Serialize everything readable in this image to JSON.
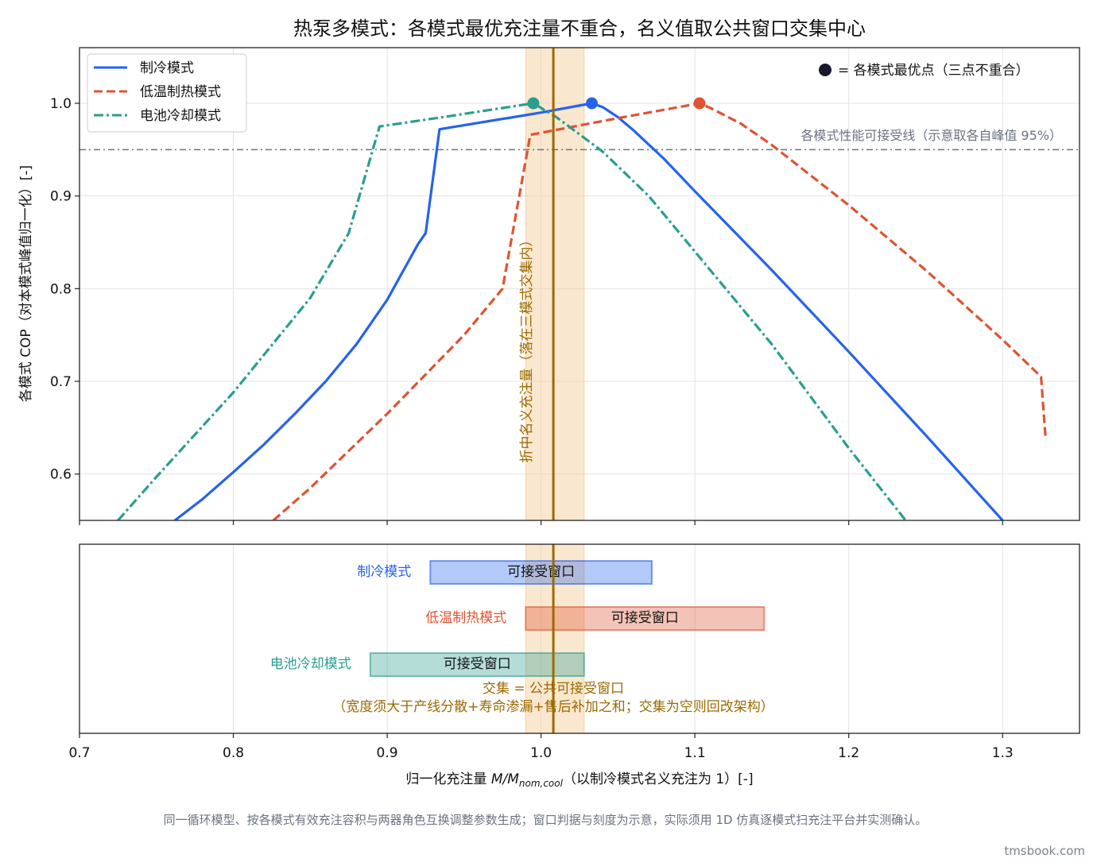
{
  "figure": {
    "title": "热泵多模式：各模式最优充注量不重合，名义值取公共窗口交集中心",
    "footnote": "同一循环模型、按各模式有效充注容积与两器角色互换调整参数生成；窗口判据与刻度为示意，实际须用 1D 仿真逐模式扫充注平台并实测确认。",
    "watermark": "tmsbook.com"
  },
  "colors": {
    "cooling": "#2563eb",
    "heating": "#e05331",
    "battery": "#2a9d8f",
    "nominal": "#9a6a00",
    "band_fill": "#f5c994",
    "threshold": "#6b7280",
    "optimum_marker": "#1a1a2e"
  },
  "chart_data": [
    {
      "type": "line",
      "name": "top-panel",
      "ylabel": "各模式 COP（对本模式峰值归一化）[-]",
      "xlim": [
        0.7,
        1.35
      ],
      "ylim": [
        0.55,
        1.06
      ],
      "yticks": [
        0.6,
        0.7,
        0.8,
        0.9,
        1.0
      ],
      "ytick_labels": [
        "0.6",
        "0.7",
        "0.8",
        "0.9",
        "1.0"
      ],
      "grid": true,
      "legend_position": "top-left",
      "series": [
        {
          "name": "制冷模式",
          "key": "cooling",
          "style": "solid",
          "points": [
            [
              0.762,
              0.55
            ],
            [
              0.78,
              0.573
            ],
            [
              0.8,
              0.602
            ],
            [
              0.82,
              0.632
            ],
            [
              0.84,
              0.665
            ],
            [
              0.86,
              0.7
            ],
            [
              0.88,
              0.74
            ],
            [
              0.9,
              0.788
            ],
            [
              0.92,
              0.848
            ],
            [
              0.925,
              0.86
            ],
            [
              0.934,
              0.972
            ],
            [
              1.0,
              0.99
            ],
            [
              1.033,
              1.0
            ],
            [
              1.04,
              0.996
            ],
            [
              1.05,
              0.985
            ],
            [
              1.06,
              0.971
            ],
            [
              1.08,
              0.94
            ],
            [
              1.1,
              0.905
            ],
            [
              1.15,
              0.82
            ],
            [
              1.2,
              0.732
            ],
            [
              1.25,
              0.642
            ],
            [
              1.3,
              0.55
            ]
          ],
          "optimum": [
            1.033,
            1.0
          ]
        },
        {
          "name": "低温制热模式",
          "key": "heating",
          "style": "dashed",
          "points": [
            [
              0.826,
              0.55
            ],
            [
              0.85,
              0.585
            ],
            [
              0.9,
              0.665
            ],
            [
              0.95,
              0.75
            ],
            [
              0.975,
              0.8
            ],
            [
              0.993,
              0.966
            ],
            [
              1.05,
              0.984
            ],
            [
              1.103,
              1.0
            ],
            [
              1.11,
              0.995
            ],
            [
              1.13,
              0.978
            ],
            [
              1.15,
              0.955
            ],
            [
              1.2,
              0.89
            ],
            [
              1.25,
              0.82
            ],
            [
              1.3,
              0.745
            ],
            [
              1.325,
              0.705
            ],
            [
              1.328,
              0.638
            ]
          ],
          "optimum": [
            1.103,
            1.0
          ]
        },
        {
          "name": "电池冷却模式",
          "key": "battery",
          "style": "dashdot",
          "points": [
            [
              0.725,
              0.55
            ],
            [
              0.75,
              0.597
            ],
            [
              0.8,
              0.688
            ],
            [
              0.85,
              0.79
            ],
            [
              0.875,
              0.86
            ],
            [
              0.895,
              0.975
            ],
            [
              0.94,
              0.986
            ],
            [
              0.995,
              1.0
            ],
            [
              1.01,
              0.985
            ],
            [
              1.04,
              0.948
            ],
            [
              1.07,
              0.9
            ],
            [
              1.1,
              0.84
            ],
            [
              1.15,
              0.74
            ],
            [
              1.2,
              0.628
            ],
            [
              1.237,
              0.55
            ]
          ],
          "optimum": [
            0.995,
            1.0
          ]
        }
      ],
      "threshold": {
        "y": 0.95,
        "label": "各模式性能可接受线（示意取各自峰值 95%）"
      },
      "optimum_legend": "= 各模式最优点（三点不重合）",
      "nominal": {
        "x": 1.008,
        "label": "折中名义充注量（落在三模式交集内）"
      },
      "intersection_band": [
        0.99,
        1.028
      ]
    },
    {
      "type": "bar",
      "name": "bottom-panel",
      "xlabel_prefix": "归一化充注量 ",
      "xlabel_var": "M/M",
      "xlabel_sub": "nom,cool",
      "xlabel_suffix": "（以制冷模式名义充注为 1）[-]",
      "xlim": [
        0.7,
        1.35
      ],
      "xticks": [
        0.7,
        0.8,
        0.9,
        1.0,
        1.1,
        1.2,
        1.3
      ],
      "xtick_labels": [
        "0.7",
        "0.8",
        "0.9",
        "1.0",
        "1.1",
        "1.2",
        "1.3"
      ],
      "grid": true,
      "windows": [
        {
          "mode": "制冷模式",
          "key": "cooling",
          "range": [
            0.928,
            1.072
          ],
          "label": "可接受窗口"
        },
        {
          "mode": "低温制热模式",
          "key": "heating",
          "range": [
            0.99,
            1.145
          ],
          "label": "可接受窗口"
        },
        {
          "mode": "电池冷却模式",
          "key": "battery",
          "range": [
            0.889,
            1.028
          ],
          "label": "可接受窗口"
        }
      ],
      "intersection_label_1": "交集 = 公共可接受窗口",
      "intersection_label_2": "（宽度须大于产线分散+寿命渗漏+售后补加之和；交集为空则回改架构）"
    }
  ]
}
